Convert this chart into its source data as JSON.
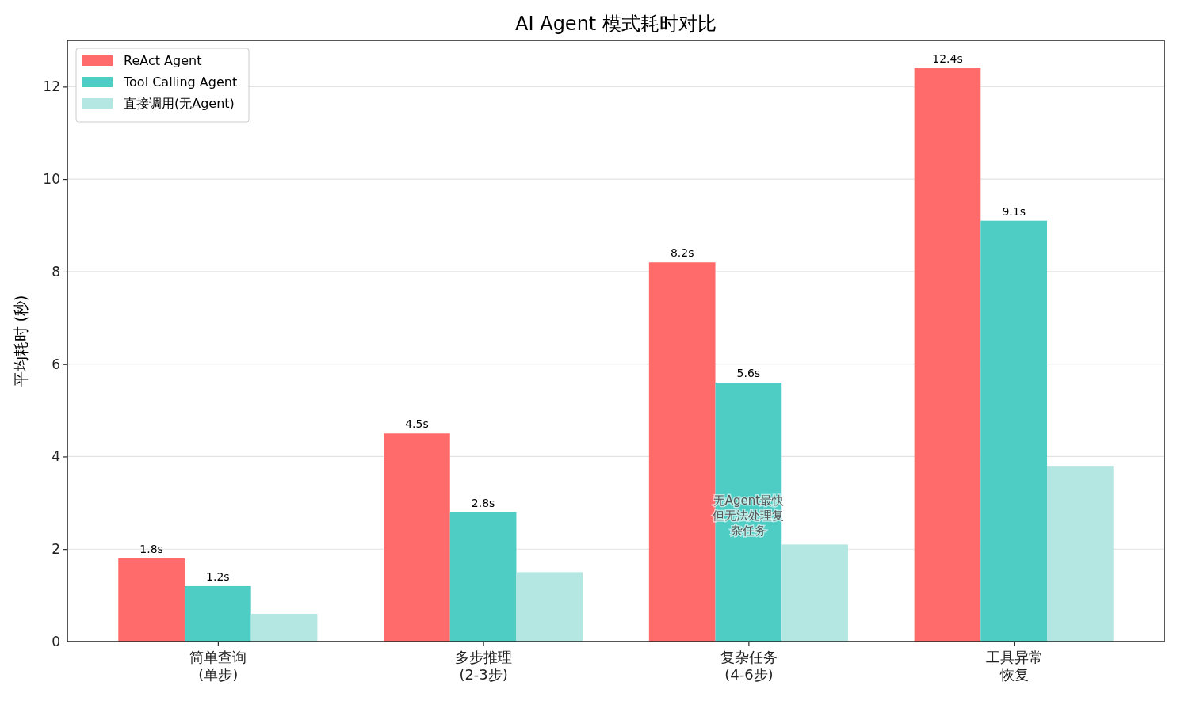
{
  "chart_data": {
    "type": "bar",
    "title": "AI Agent 模式耗时对比",
    "ylabel": "平均耗时 (秒)",
    "categories": [
      "简单查询(单步)",
      "多步推理(2-3步)",
      "复杂任务(4-6步)",
      "工具异常恢复"
    ],
    "series": [
      {
        "name": "ReAct Agent",
        "color": "#ff6b6b",
        "values": [
          1.8,
          4.5,
          8.2,
          12.4
        ],
        "value_labels": [
          "1.8s",
          "4.5s",
          "8.2s",
          "12.4s"
        ]
      },
      {
        "name": "Tool Calling Agent",
        "color": "#4ecdc4",
        "values": [
          1.2,
          2.8,
          5.6,
          9.1
        ],
        "value_labels": [
          "1.2s",
          "2.8s",
          "5.6s",
          "9.1s"
        ]
      },
      {
        "name": "直接调用(无Agent)",
        "color": "#b4e7e1",
        "values": [
          0.6,
          1.5,
          2.1,
          3.8
        ]
      }
    ],
    "ylim": [
      0,
      13
    ],
    "yticks": [
      0,
      2,
      4,
      6,
      8,
      10,
      12
    ],
    "grid": "y",
    "legend": "top left",
    "annotations": [
      "无Agent最快但无法处理复杂任务"
    ]
  }
}
